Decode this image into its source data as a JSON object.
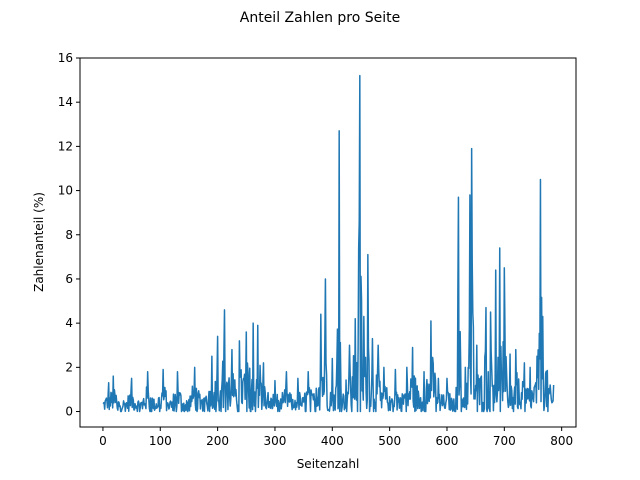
{
  "chart_data": {
    "type": "line",
    "title": "Anteil Zahlen pro Seite",
    "xlabel": "Seitenzahl",
    "ylabel": "Zahlenanteil (%)",
    "xlim": [
      -40,
      825
    ],
    "ylim": [
      -0.7,
      16
    ],
    "xticks": [
      0,
      100,
      200,
      300,
      400,
      500,
      600,
      700,
      800
    ],
    "yticks": [
      0,
      2,
      4,
      6,
      8,
      10,
      12,
      14,
      16
    ],
    "grid": false,
    "legend": "none",
    "series_color": "#1f77b4",
    "n_points": 787,
    "peaks": [
      [
        10,
        1.3
      ],
      [
        18,
        1.6
      ],
      [
        50,
        1.5
      ],
      [
        78,
        1.8
      ],
      [
        105,
        1.9
      ],
      [
        130,
        1.8
      ],
      [
        160,
        2.0
      ],
      [
        190,
        2.5
      ],
      [
        200,
        3.4
      ],
      [
        212,
        4.6
      ],
      [
        225,
        2.8
      ],
      [
        238,
        3.2
      ],
      [
        250,
        3.6
      ],
      [
        262,
        4.0
      ],
      [
        270,
        3.9
      ],
      [
        280,
        2.2
      ],
      [
        300,
        1.4
      ],
      [
        320,
        1.8
      ],
      [
        340,
        1.5
      ],
      [
        358,
        1.8
      ],
      [
        380,
        4.4
      ],
      [
        388,
        6.0
      ],
      [
        400,
        2.4
      ],
      [
        412,
        12.7
      ],
      [
        430,
        3.0
      ],
      [
        440,
        4.2
      ],
      [
        448,
        15.2
      ],
      [
        455,
        4.3
      ],
      [
        462,
        7.1
      ],
      [
        470,
        3.3
      ],
      [
        480,
        3.0
      ],
      [
        490,
        2.0
      ],
      [
        510,
        1.9
      ],
      [
        530,
        2.0
      ],
      [
        540,
        2.9
      ],
      [
        560,
        1.8
      ],
      [
        572,
        4.1
      ],
      [
        585,
        1.5
      ],
      [
        600,
        1.5
      ],
      [
        620,
        9.7
      ],
      [
        632,
        2.0
      ],
      [
        640,
        9.8
      ],
      [
        643,
        11.9
      ],
      [
        652,
        3.0
      ],
      [
        668,
        4.7
      ],
      [
        676,
        4.5
      ],
      [
        685,
        6.4
      ],
      [
        692,
        7.4
      ],
      [
        700,
        6.5
      ],
      [
        710,
        2.6
      ],
      [
        720,
        2.8
      ],
      [
        735,
        2.2
      ],
      [
        745,
        2.0
      ],
      [
        757,
        2.5
      ],
      [
        763,
        10.5
      ],
      [
        767,
        4.3
      ],
      [
        780,
        1.2
      ],
      [
        786,
        1.2
      ]
    ]
  }
}
